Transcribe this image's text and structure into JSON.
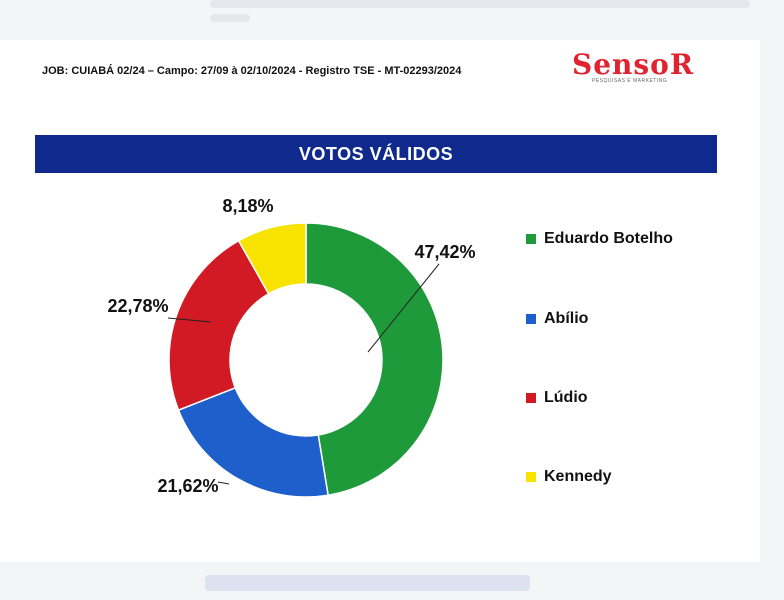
{
  "header": {
    "job_line": "JOB: CUIABÁ 02/24 – Campo: 27/09 à 02/10/2024 - Registro TSE - MT-02293/2024",
    "logo_text": "SensoR",
    "logo_sub": "PESQUISAS E MARKETING"
  },
  "chart_data": {
    "type": "pie",
    "title": "VOTOS VÁLIDOS",
    "donut": true,
    "legend_position": "right",
    "slices": [
      {
        "name": "Eduardo Botelho",
        "value": 47.42,
        "label": "47,42%",
        "color": "#1f9a3a"
      },
      {
        "name": "Abílio",
        "value": 21.62,
        "label": "21,62%",
        "color": "#1f5fcc"
      },
      {
        "name": "Lúdio",
        "value": 22.78,
        "label": "22,78%",
        "color": "#d11a24"
      },
      {
        "name": "Kennedy",
        "value": 8.18,
        "label": "8,18%",
        "color": "#f7e200"
      }
    ]
  }
}
